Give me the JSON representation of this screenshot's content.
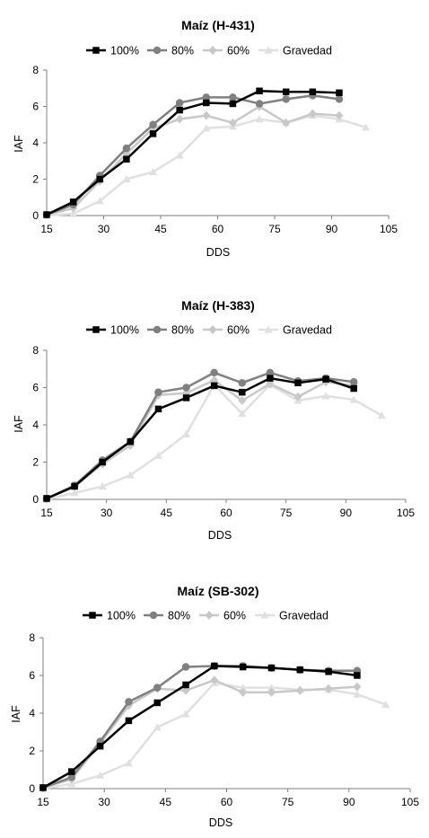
{
  "chart_data": [
    {
      "type": "line",
      "title": "Maíz (H-431)",
      "xlabel": "DDS",
      "ylabel": "IAF",
      "xlim": [
        15,
        105
      ],
      "ylim": [
        0,
        8
      ],
      "xticks": [
        15,
        30,
        45,
        60,
        75,
        90,
        105
      ],
      "yticks": [
        0,
        2,
        4,
        6,
        8
      ],
      "legend": "top",
      "series": [
        {
          "name": "100%",
          "color": "#000000",
          "marker": "square",
          "x": [
            15,
            22,
            29,
            36,
            43,
            50,
            57,
            64,
            71,
            78,
            85,
            92
          ],
          "y": [
            0.05,
            0.75,
            2.0,
            3.1,
            4.5,
            5.8,
            6.2,
            6.15,
            6.85,
            6.8,
            6.8,
            6.75
          ]
        },
        {
          "name": "80%",
          "color": "#808080",
          "marker": "circle",
          "x": [
            15,
            22,
            29,
            36,
            43,
            50,
            57,
            64,
            71,
            78,
            85,
            92
          ],
          "y": [
            0.05,
            0.6,
            2.2,
            3.7,
            5.0,
            6.2,
            6.5,
            6.5,
            6.15,
            6.4,
            6.6,
            6.4
          ]
        },
        {
          "name": "60%",
          "color": "#c8c8c8",
          "marker": "diamond",
          "x": [
            15,
            22,
            29,
            36,
            43,
            50,
            57,
            64,
            71,
            78,
            85,
            92
          ],
          "y": [
            0.05,
            0.4,
            1.9,
            3.4,
            4.8,
            5.3,
            5.5,
            5.1,
            6.0,
            5.1,
            5.6,
            5.5
          ]
        },
        {
          "name": "Gravedad",
          "color": "#e0e0e0",
          "marker": "triangle",
          "x": [
            15,
            22,
            29,
            36,
            43,
            50,
            57,
            64,
            71,
            78,
            85,
            92,
            99
          ],
          "y": [
            0.0,
            0.1,
            0.8,
            2.0,
            2.4,
            3.3,
            4.8,
            4.9,
            5.3,
            5.1,
            5.5,
            5.3,
            4.85
          ]
        }
      ]
    },
    {
      "type": "line",
      "title": "Maíz (H-383)",
      "xlabel": "DDS",
      "ylabel": "IAF",
      "xlim": [
        15,
        105
      ],
      "ylim": [
        0,
        8
      ],
      "xticks": [
        15,
        30,
        45,
        60,
        75,
        90,
        105
      ],
      "yticks": [
        0,
        2,
        4,
        6,
        8
      ],
      "legend": "top",
      "series": [
        {
          "name": "100%",
          "color": "#000000",
          "marker": "square",
          "x": [
            15,
            22,
            29,
            36,
            43,
            50,
            57,
            64,
            71,
            78,
            85,
            92
          ],
          "y": [
            0.05,
            0.7,
            2.0,
            3.1,
            4.85,
            5.45,
            6.1,
            5.75,
            6.5,
            6.25,
            6.45,
            5.95
          ]
        },
        {
          "name": "80%",
          "color": "#808080",
          "marker": "circle",
          "x": [
            15,
            22,
            29,
            36,
            43,
            50,
            57,
            64,
            71,
            78,
            85,
            92
          ],
          "y": [
            0.05,
            0.75,
            2.1,
            3.1,
            5.75,
            6.0,
            6.8,
            6.25,
            6.8,
            6.35,
            6.5,
            6.3
          ]
        },
        {
          "name": "60%",
          "color": "#c8c8c8",
          "marker": "diamond",
          "x": [
            15,
            22,
            29,
            36,
            43,
            50,
            57,
            64,
            71,
            78,
            85,
            92
          ],
          "y": [
            0.05,
            0.7,
            1.9,
            2.9,
            5.6,
            5.7,
            6.4,
            5.3,
            6.2,
            5.5,
            6.3,
            6.1
          ]
        },
        {
          "name": "Gravedad",
          "color": "#e0e0e0",
          "marker": "triangle",
          "x": [
            15,
            22,
            29,
            36,
            43,
            50,
            57,
            64,
            71,
            78,
            85,
            92,
            99
          ],
          "y": [
            0.0,
            0.35,
            0.7,
            1.3,
            2.35,
            3.5,
            6.15,
            4.6,
            6.15,
            5.3,
            5.55,
            5.35,
            4.5
          ]
        }
      ]
    },
    {
      "type": "line",
      "title": "Maíz (SB-302)",
      "xlabel": "DDS",
      "ylabel": "IAF",
      "xlim": [
        15,
        105
      ],
      "ylim": [
        0,
        8
      ],
      "xticks": [
        15,
        30,
        45,
        60,
        75,
        90,
        105
      ],
      "yticks": [
        0,
        2,
        4,
        6,
        8
      ],
      "legend": "top",
      "series": [
        {
          "name": "100%",
          "color": "#000000",
          "marker": "square",
          "x": [
            15,
            22,
            29,
            36,
            43,
            50,
            57,
            64,
            71,
            78,
            85,
            92
          ],
          "y": [
            0.05,
            0.9,
            2.25,
            3.6,
            4.55,
            5.5,
            6.5,
            6.45,
            6.4,
            6.3,
            6.2,
            6.0
          ]
        },
        {
          "name": "80%",
          "color": "#808080",
          "marker": "circle",
          "x": [
            15,
            22,
            29,
            36,
            43,
            50,
            57,
            64,
            71,
            78,
            85,
            92
          ],
          "y": [
            0.05,
            0.6,
            2.5,
            4.6,
            5.35,
            6.45,
            6.5,
            6.5,
            6.4,
            6.3,
            6.25,
            6.25
          ]
        },
        {
          "name": "60%",
          "color": "#c8c8c8",
          "marker": "diamond",
          "x": [
            15,
            22,
            29,
            36,
            43,
            50,
            57,
            64,
            71,
            78,
            85,
            92
          ],
          "y": [
            0.05,
            0.5,
            2.4,
            4.4,
            5.3,
            5.2,
            5.75,
            5.1,
            5.1,
            5.2,
            5.3,
            5.4
          ]
        },
        {
          "name": "Gravedad",
          "color": "#e0e0e0",
          "marker": "triangle",
          "x": [
            15,
            22,
            29,
            36,
            43,
            50,
            57,
            64,
            71,
            78,
            85,
            92,
            99
          ],
          "y": [
            0.0,
            0.25,
            0.7,
            1.35,
            3.25,
            3.95,
            5.6,
            5.35,
            5.35,
            5.25,
            5.25,
            5.0,
            4.45
          ]
        }
      ]
    }
  ]
}
